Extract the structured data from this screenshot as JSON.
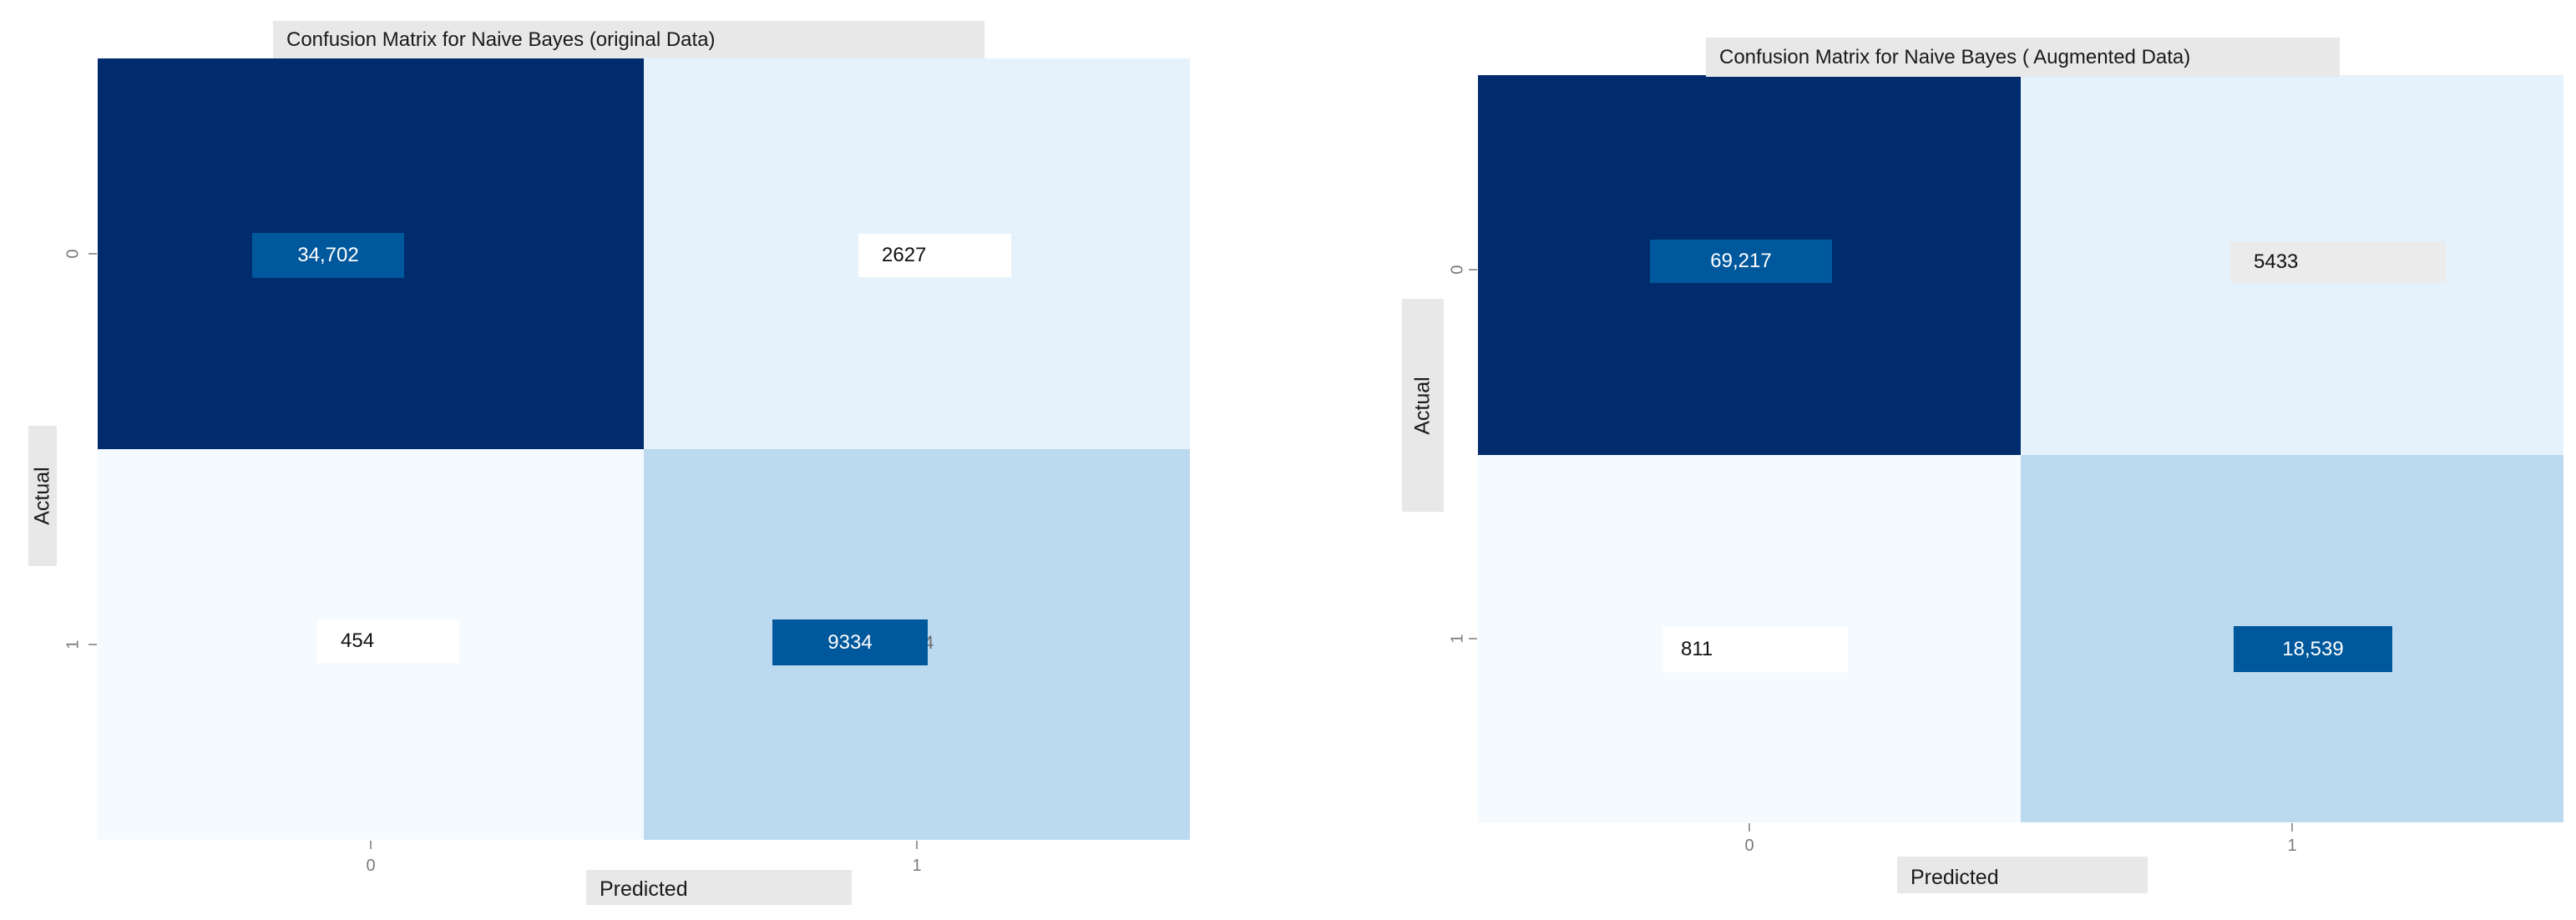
{
  "chart_data": [
    {
      "type": "heatmap",
      "title": "Confusion Matrix for Naive Bayes (original Data)",
      "xlabel": "Predicted",
      "ylabel": "Actual",
      "x_categories": [
        "0",
        "1"
      ],
      "y_categories": [
        "0",
        "1"
      ],
      "values": [
        [
          34702,
          2627
        ],
        [
          454,
          9334
        ]
      ],
      "value_labels": [
        [
          "34,702",
          "2627"
        ],
        [
          "454",
          "9334"
        ]
      ],
      "colormap": "Blues",
      "colorbar": false,
      "colors": {
        "dark": "#002b6c",
        "light": "#e5f2fb",
        "lighter": "#f5fafe",
        "mid": "#bcdaef"
      }
    },
    {
      "type": "heatmap",
      "title": "Confusion Matrix for Naive Bayes ( Augmented Data)",
      "xlabel": "Predicted",
      "ylabel": "Actual",
      "x_categories": [
        "0",
        "1"
      ],
      "y_categories": [
        "0",
        "1"
      ],
      "values": [
        [
          69217,
          5433
        ],
        [
          811,
          18539
        ]
      ],
      "value_labels": [
        [
          "69,217",
          "5433"
        ],
        [
          "811",
          "18,539"
        ]
      ],
      "colormap": "Blues",
      "colorbar": false,
      "colors": {
        "dark": "#002b6c",
        "light": "#e5f2fb",
        "lighter": "#f5fafe",
        "mid": "#bcdaef"
      }
    }
  ]
}
